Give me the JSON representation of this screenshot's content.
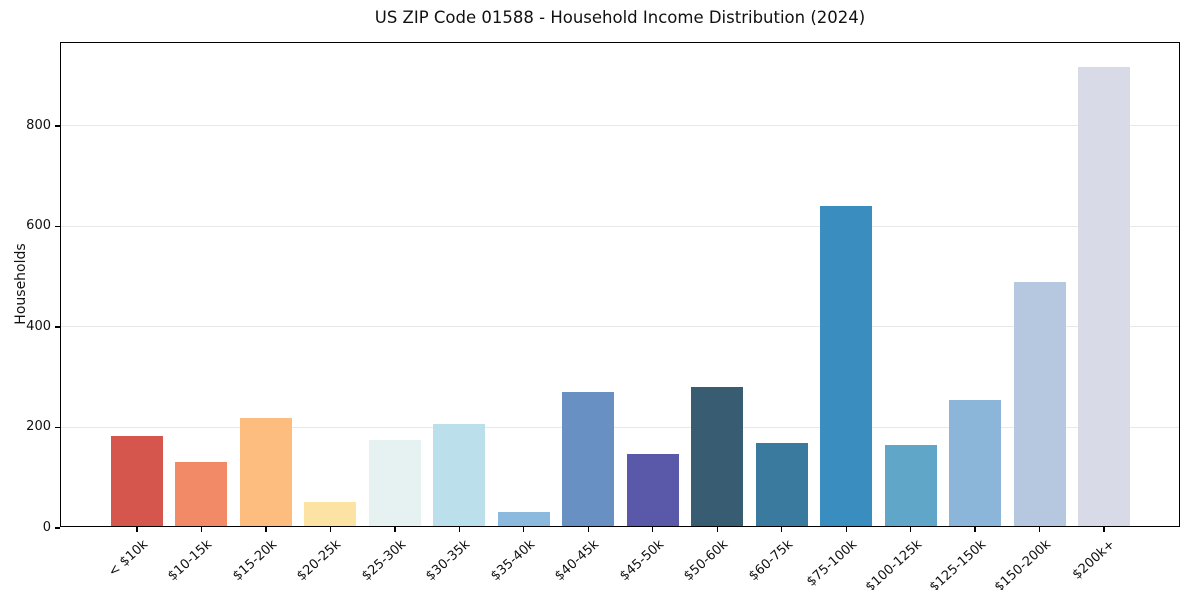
{
  "title": "US ZIP Code 01588 - Household Income Distribution (2024)",
  "chart_data": {
    "type": "bar",
    "title": "US ZIP Code 01588 - Household Income Distribution (2024)",
    "xlabel": "",
    "ylabel": "Households",
    "categories": [
      "< $10k",
      "$10-15k",
      "$15-20k",
      "$20-25k",
      "$25-30k",
      "$30-35k",
      "$35-40k",
      "$40-45k",
      "$45-50k",
      "$50-60k",
      "$60-75k",
      "$75-100k",
      "$100-125k",
      "$125-150k",
      "$150-200k",
      "$200k+"
    ],
    "values": [
      180,
      127,
      215,
      48,
      171,
      203,
      27,
      266,
      143,
      277,
      165,
      636,
      161,
      250,
      485,
      914
    ],
    "bar_colors": [
      "#d5564c",
      "#f28a68",
      "#fcbd7e",
      "#fde3a3",
      "#e6f2f1",
      "#bbdfeb",
      "#8cbade",
      "#6990c2",
      "#5a58a8",
      "#385c71",
      "#3a7a9e",
      "#398dbf",
      "#5fa6c9",
      "#8cb6d9",
      "#b6c8df",
      "#d8dae8"
    ],
    "yticks": [
      0,
      200,
      400,
      600,
      800
    ],
    "ylim": [
      0,
      965
    ],
    "grid": "horizontal",
    "gridline_color": "#e8e8e8",
    "background_color": "#ffffff",
    "legend": "none"
  }
}
